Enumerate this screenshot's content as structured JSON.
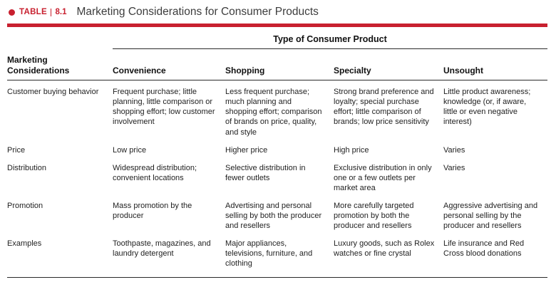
{
  "page": {
    "table_label": "TABLE",
    "table_number": "8.1",
    "title": "Marketing Considerations for Consumer Products",
    "accent_color": "#c8202f"
  },
  "table": {
    "spanning_header": "Type of Consumer Product",
    "row_header": "Marketing Considerations",
    "columns": [
      "Convenience",
      "Shopping",
      "Specialty",
      "Unsought"
    ],
    "rows": [
      {
        "label": "Customer buying behavior",
        "cells": [
          "Frequent purchase; little planning, little comparison or shopping effort; low customer involvement",
          "Less frequent purchase; much planning and shopping effort; comparison of brands on price, quality, and style",
          "Strong brand preference and loyalty; special purchase effort; little comparison of brands; low price sensitivity",
          "Little product awareness; knowledge (or, if aware, little or even negative interest)"
        ]
      },
      {
        "label": "Price",
        "cells": [
          "Low price",
          "Higher price",
          "High price",
          "Varies"
        ]
      },
      {
        "label": "Distribution",
        "cells": [
          "Widespread distribution; convenient locations",
          "Selective distribution in fewer outlets",
          "Exclusive distribution in only one or a few outlets per market area",
          "Varies"
        ]
      },
      {
        "label": "Promotion",
        "cells": [
          "Mass promotion by the producer",
          "Advertising and personal selling by both the producer and resellers",
          "More carefully targeted promotion by both the producer and resellers",
          "Aggressive advertising and personal selling by the producer and resellers"
        ]
      },
      {
        "label": "Examples",
        "cells": [
          "Toothpaste, magazines, and laundry detergent",
          "Major appliances, televisions, furniture, and clothing",
          "Luxury goods, such as Rolex watches or fine crystal",
          "Life insurance and Red Cross blood donations"
        ]
      }
    ]
  }
}
